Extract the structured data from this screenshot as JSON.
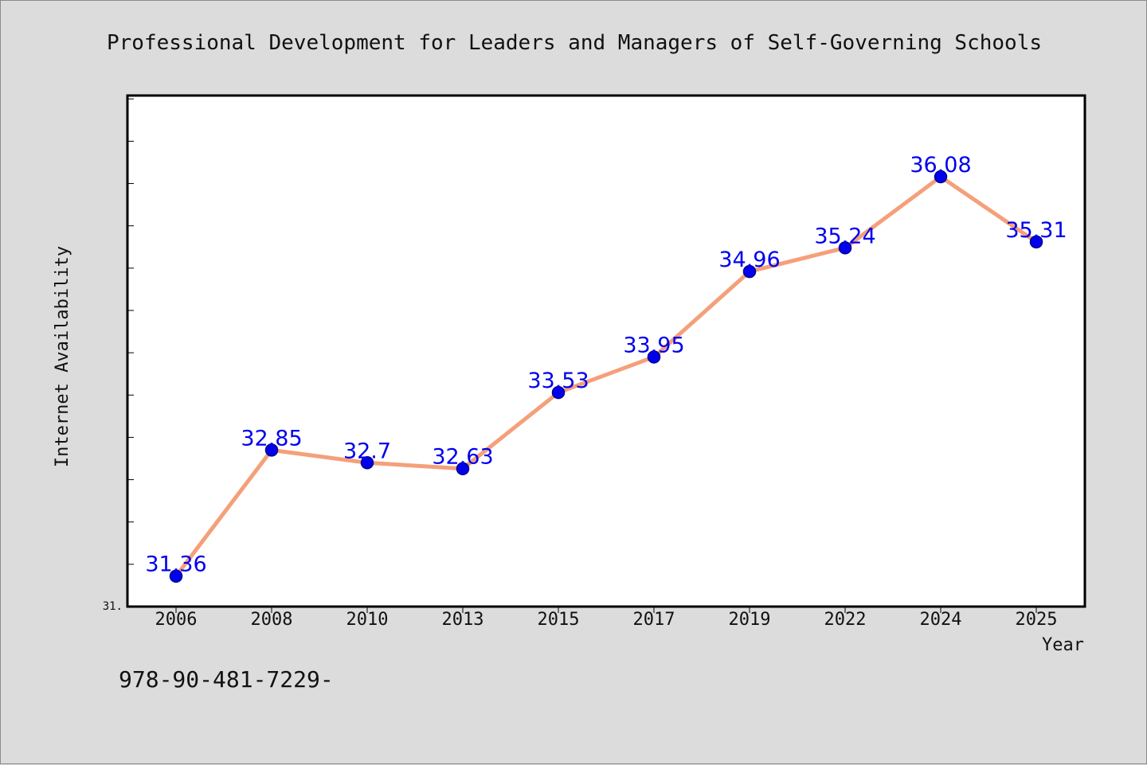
{
  "chart_data": {
    "type": "line",
    "title": "Professional Development for Leaders and Managers of Self-Governing Schools",
    "xlabel": "Year",
    "ylabel": "Internet Availability",
    "categories": [
      "2006",
      "2008",
      "2010",
      "2013",
      "2015",
      "2017",
      "2019",
      "2022",
      "2024",
      "2025"
    ],
    "series": [
      {
        "values": [
          31.36,
          32.85,
          32.7,
          32.63,
          33.53,
          33.95,
          34.96,
          35.24,
          36.08,
          35.31
        ],
        "data_labels": [
          "31.36",
          "32.85",
          "32.7",
          "32.63",
          "33.53",
          "33.95",
          "34.96",
          "35.24",
          "36.08",
          "35.31"
        ]
      }
    ],
    "ylim": [
      31,
      37.04
    ],
    "y_tick_label": "31.",
    "grid": false,
    "legend": "none",
    "colors": {
      "line": "#f4a07a",
      "marker": "#0000ee",
      "marker_edge": "#00008b",
      "data_label": "#0000ee",
      "plot_bg": "#ffffff",
      "page_bg": "#dcdcdc"
    }
  },
  "footer": {
    "isbn": "978-90-481-7229-"
  }
}
